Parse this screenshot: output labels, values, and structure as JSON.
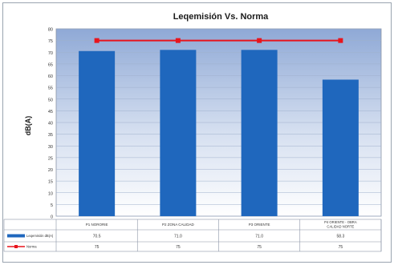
{
  "chart_data": {
    "type": "bar",
    "title": "Leqemisión Vs. Norma",
    "ylabel": "dB(A)",
    "xlabel": "",
    "ylim": [
      0,
      80
    ],
    "yticks": [
      0,
      5,
      10,
      15,
      20,
      25,
      30,
      35,
      40,
      45,
      50,
      55,
      60,
      65,
      70,
      75,
      80
    ],
    "categories": [
      "P1 NORORIE",
      "P2 ZONA CALIDAD",
      "P3 ORIENTE",
      "P4 ORIENTE - OBRA CALIDAD NORTE"
    ],
    "series": [
      {
        "name": "Leqemisión dB(A)",
        "kind": "bar",
        "color": "#1f67bd",
        "values": [
          70.5,
          71.0,
          71.0,
          58.3
        ]
      },
      {
        "name": "Norma",
        "kind": "line",
        "color": "#e8141c",
        "values": [
          75,
          75,
          75,
          75
        ]
      }
    ],
    "table": {
      "rows": [
        {
          "label": "Leqemisión dB(A)",
          "values": [
            "70.5",
            "71.0",
            "71.0",
            "58.3"
          ]
        },
        {
          "label": "Norma",
          "values": [
            "75",
            "75",
            "75",
            "75"
          ]
        }
      ]
    },
    "grid": true,
    "legend": "bottom-left table"
  }
}
